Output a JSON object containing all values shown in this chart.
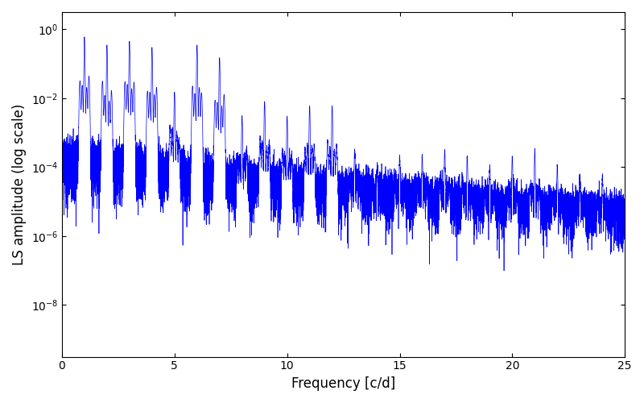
{
  "title": "",
  "xlabel": "Frequency [c/d]",
  "ylabel": "LS amplitude (log scale)",
  "line_color": "#0000FF",
  "line_width": 0.5,
  "xlim": [
    0,
    25
  ],
  "ylim_log_min": -9.5,
  "ylim_log_max": 0.5,
  "yscale": "log",
  "yticks": [
    1e-08,
    1e-06,
    0.0001,
    0.01,
    1.0
  ],
  "freq_max": 25.0,
  "n_points": 15000,
  "seed": 7,
  "background_color": "#ffffff",
  "figsize": [
    8.0,
    5.0
  ],
  "dpi": 100
}
